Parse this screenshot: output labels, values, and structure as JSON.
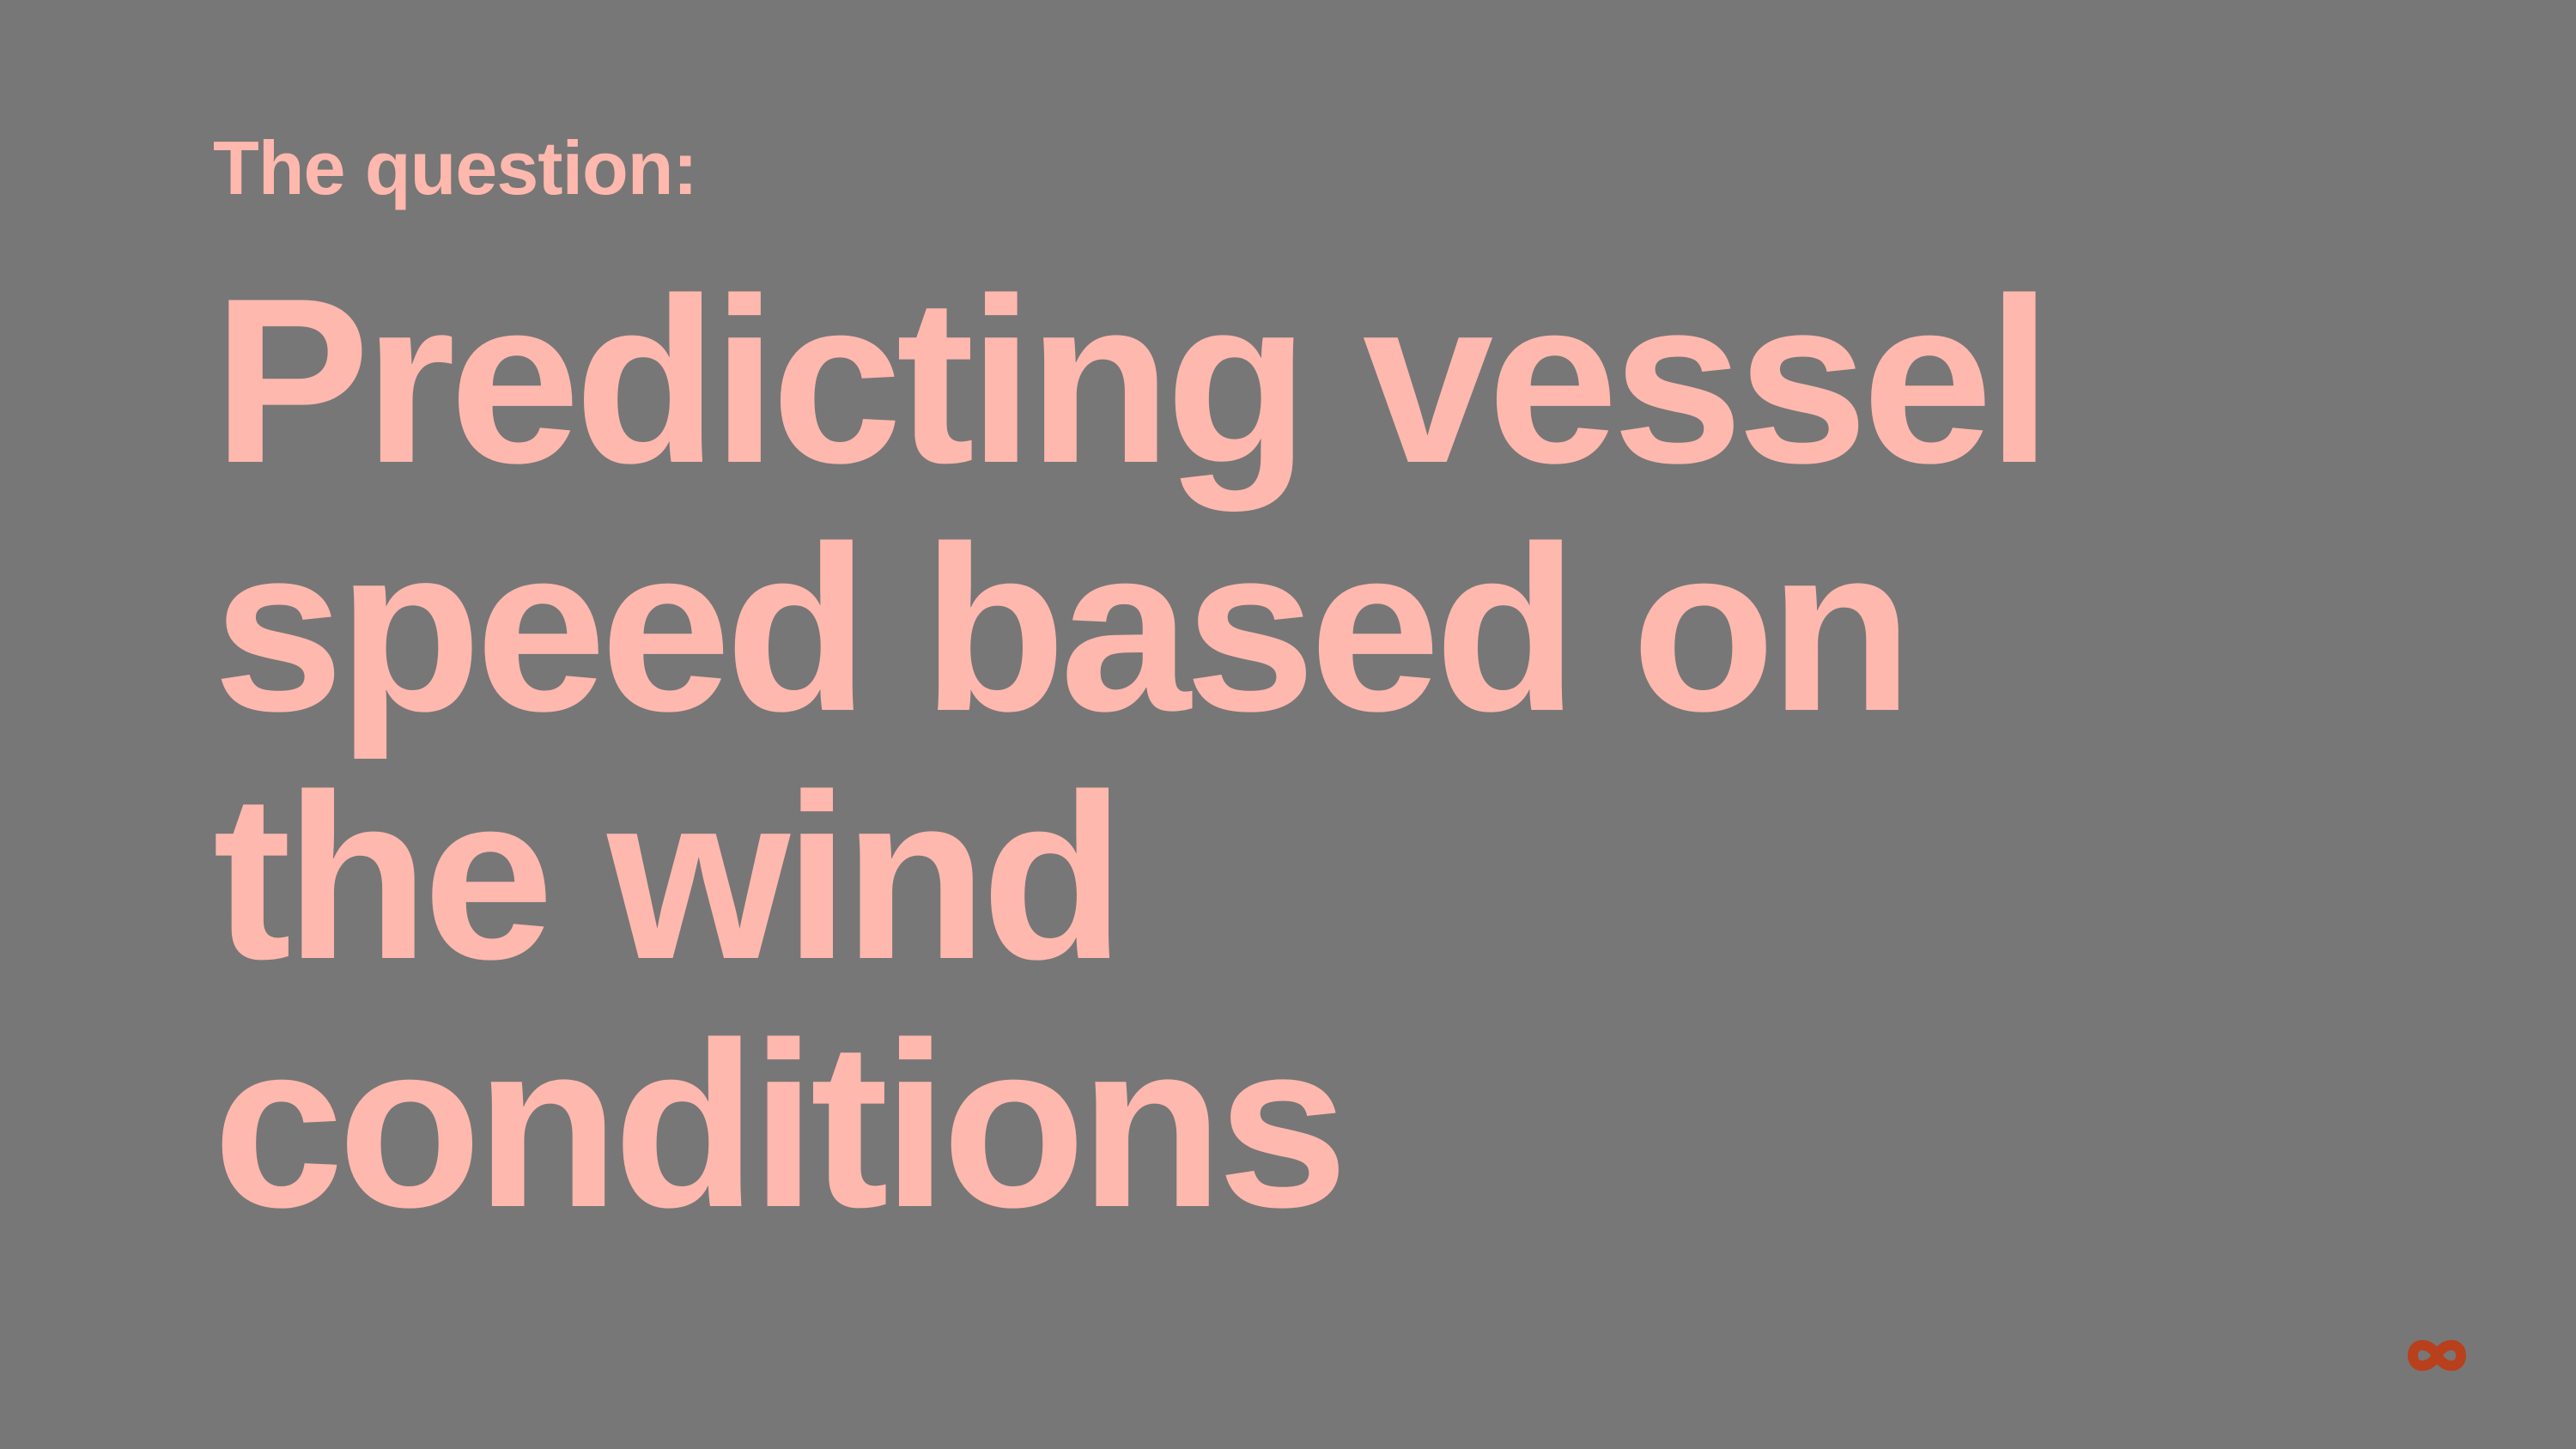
{
  "slide": {
    "kicker": "The question:",
    "title_lines": [
      "Predicting vessel",
      "speed based on",
      "the wind",
      "conditions"
    ]
  },
  "logo": {
    "icon": "infinity-logo-icon",
    "color": "#b8401c"
  },
  "colors": {
    "background": "#777777",
    "accent_text": "#ffb8ae"
  }
}
